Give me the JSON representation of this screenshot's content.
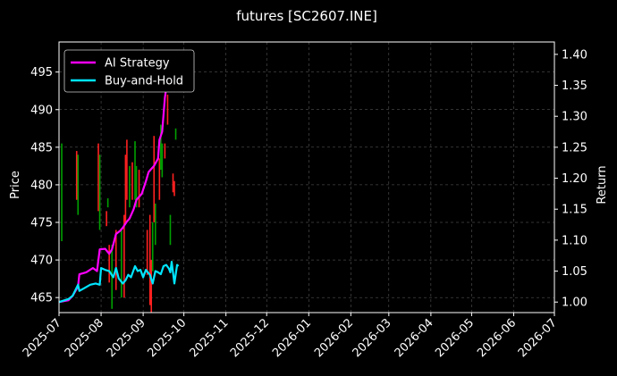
{
  "chart_data": {
    "type": "line",
    "title": "futures [SC2607.INE]",
    "xlabel": "",
    "ylabel_left": "Price",
    "ylabel_right": "Return",
    "x_ticks": [
      "2025-07",
      "2025-08",
      "2025-09",
      "2025-10",
      "2025-11",
      "2025-12",
      "2026-01",
      "2026-02",
      "2026-03",
      "2026-04",
      "2026-05",
      "2026-06",
      "2026-07"
    ],
    "xlim": [
      "2025-07-01",
      "2026-07-01"
    ],
    "y_left_ticks": [
      465,
      470,
      475,
      480,
      485,
      490,
      495
    ],
    "y_left_lim": [
      463,
      499
    ],
    "y_right_ticks": [
      1.0,
      1.05,
      1.1,
      1.15,
      1.2,
      1.25,
      1.3,
      1.35,
      1.4
    ],
    "y_right_lim": [
      0.983,
      1.42
    ],
    "grid": true,
    "legend_position": "top-left",
    "background": "#000000",
    "colors": {
      "up": "#00a000",
      "down": "#ff2020",
      "ai": "#ff00ff",
      "bh": "#00e5ff"
    },
    "series": [
      {
        "name": "AI Strategy",
        "axis": "right",
        "points": [
          [
            "2025-07-01",
            1.0
          ],
          [
            "2025-07-08",
            1.003
          ],
          [
            "2025-07-11",
            1.01
          ],
          [
            "2025-07-15",
            1.025
          ],
          [
            "2025-07-16",
            1.045
          ],
          [
            "2025-07-21",
            1.048
          ],
          [
            "2025-07-26",
            1.055
          ],
          [
            "2025-07-29",
            1.05
          ],
          [
            "2025-07-31",
            1.085
          ],
          [
            "2025-08-04",
            1.086
          ],
          [
            "2025-08-07",
            1.078
          ],
          [
            "2025-08-09",
            1.085
          ],
          [
            "2025-08-12",
            1.11
          ],
          [
            "2025-08-15",
            1.115
          ],
          [
            "2025-08-17",
            1.12
          ],
          [
            "2025-08-20",
            1.13
          ],
          [
            "2025-08-22",
            1.135
          ],
          [
            "2025-08-25",
            1.15
          ],
          [
            "2025-08-27",
            1.165
          ],
          [
            "2025-08-29",
            1.17
          ],
          [
            "2025-08-31",
            1.175
          ],
          [
            "2025-09-03",
            1.195
          ],
          [
            "2025-09-05",
            1.21
          ],
          [
            "2025-09-07",
            1.215
          ],
          [
            "2025-09-09",
            1.22
          ],
          [
            "2025-09-12",
            1.232
          ],
          [
            "2025-09-13",
            1.262
          ],
          [
            "2025-09-15",
            1.275
          ],
          [
            "2025-09-17",
            1.33
          ],
          [
            "2025-09-18",
            1.345
          ],
          [
            "2025-09-22",
            1.355
          ],
          [
            "2025-09-24",
            1.375
          ],
          [
            "2025-09-26",
            1.395
          ]
        ]
      },
      {
        "name": "Buy-and-Hold",
        "axis": "right",
        "points": [
          [
            "2025-07-01",
            1.0
          ],
          [
            "2025-07-08",
            1.005
          ],
          [
            "2025-07-11",
            1.01
          ],
          [
            "2025-07-15",
            1.028
          ],
          [
            "2025-07-16",
            1.018
          ],
          [
            "2025-07-20",
            1.023
          ],
          [
            "2025-07-24",
            1.028
          ],
          [
            "2025-07-28",
            1.03
          ],
          [
            "2025-07-31",
            1.028
          ],
          [
            "2025-08-01",
            1.055
          ],
          [
            "2025-08-04",
            1.052
          ],
          [
            "2025-08-07",
            1.05
          ],
          [
            "2025-08-10",
            1.04
          ],
          [
            "2025-08-12",
            1.055
          ],
          [
            "2025-08-14",
            1.038
          ],
          [
            "2025-08-17",
            1.03
          ],
          [
            "2025-08-19",
            1.035
          ],
          [
            "2025-08-21",
            1.044
          ],
          [
            "2025-08-23",
            1.04
          ],
          [
            "2025-08-26",
            1.058
          ],
          [
            "2025-08-28",
            1.05
          ],
          [
            "2025-08-30",
            1.052
          ],
          [
            "2025-09-01",
            1.04
          ],
          [
            "2025-09-03",
            1.052
          ],
          [
            "2025-09-06",
            1.044
          ],
          [
            "2025-09-08",
            1.03
          ],
          [
            "2025-09-10",
            1.05
          ],
          [
            "2025-09-12",
            1.048
          ],
          [
            "2025-09-14",
            1.045
          ],
          [
            "2025-09-16",
            1.058
          ],
          [
            "2025-09-18",
            1.06
          ],
          [
            "2025-09-20",
            1.054
          ],
          [
            "2025-09-21",
            1.048
          ],
          [
            "2025-09-22",
            1.065
          ],
          [
            "2025-09-24",
            1.03
          ],
          [
            "2025-09-26",
            1.06
          ],
          [
            "2025-09-27",
            1.058
          ]
        ]
      }
    ],
    "candles": [
      {
        "date": "2025-07-03",
        "low": 472.5,
        "high": 485.5,
        "dir": "up"
      },
      {
        "date": "2025-07-14",
        "low": 478.0,
        "high": 484.5,
        "dir": "down"
      },
      {
        "date": "2025-07-15",
        "low": 476.0,
        "high": 484.0,
        "dir": "up"
      },
      {
        "date": "2025-07-30",
        "low": 476.5,
        "high": 485.5,
        "dir": "down"
      },
      {
        "date": "2025-07-31",
        "low": 474.0,
        "high": 484.0,
        "dir": "up"
      },
      {
        "date": "2025-08-05",
        "low": 474.5,
        "high": 476.5,
        "dir": "down"
      },
      {
        "date": "2025-08-06",
        "low": 477.0,
        "high": 478.2,
        "dir": "up"
      },
      {
        "date": "2025-08-07",
        "low": 467.0,
        "high": 472.0,
        "dir": "down"
      },
      {
        "date": "2025-08-09",
        "low": 463.5,
        "high": 472.0,
        "dir": "up"
      },
      {
        "date": "2025-08-12",
        "low": 466.0,
        "high": 474.0,
        "dir": "down"
      },
      {
        "date": "2025-08-16",
        "low": 465.0,
        "high": 474.0,
        "dir": "up"
      },
      {
        "date": "2025-08-18",
        "low": 465.0,
        "high": 476.0,
        "dir": "down"
      },
      {
        "date": "2025-08-19",
        "low": 475.0,
        "high": 484.0,
        "dir": "down"
      },
      {
        "date": "2025-08-20",
        "low": 478.0,
        "high": 486.0,
        "dir": "down"
      },
      {
        "date": "2025-08-22",
        "low": 477.0,
        "high": 482.5,
        "dir": "up"
      },
      {
        "date": "2025-08-24",
        "low": 478.0,
        "high": 483.0,
        "dir": "down"
      },
      {
        "date": "2025-08-26",
        "low": 478.0,
        "high": 485.8,
        "dir": "up"
      },
      {
        "date": "2025-08-27",
        "low": 477.0,
        "high": 482.5,
        "dir": "up"
      },
      {
        "date": "2025-08-29",
        "low": 477.0,
        "high": 482.0,
        "dir": "down"
      },
      {
        "date": "2025-09-04",
        "low": 468.0,
        "high": 474.0,
        "dir": "down"
      },
      {
        "date": "2025-09-06",
        "low": 464.0,
        "high": 476.0,
        "dir": "down"
      },
      {
        "date": "2025-09-07",
        "low": 463.0,
        "high": 470.0,
        "dir": "down"
      },
      {
        "date": "2025-09-08",
        "low": 468.5,
        "high": 475.0,
        "dir": "up"
      },
      {
        "date": "2025-09-09",
        "low": 475.0,
        "high": 486.5,
        "dir": "down"
      },
      {
        "date": "2025-09-10",
        "low": 472.0,
        "high": 477.5,
        "dir": "up"
      },
      {
        "date": "2025-09-13",
        "low": 478.0,
        "high": 483.5,
        "dir": "down"
      },
      {
        "date": "2025-09-14",
        "low": 482.0,
        "high": 488.0,
        "dir": "up"
      },
      {
        "date": "2025-09-15",
        "low": 481.0,
        "high": 485.5,
        "dir": "up"
      },
      {
        "date": "2025-09-17",
        "low": 483.5,
        "high": 485.5,
        "dir": "down"
      },
      {
        "date": "2025-09-19",
        "low": 488.0,
        "high": 492.0,
        "dir": "down"
      },
      {
        "date": "2025-09-21",
        "low": 472.0,
        "high": 476.0,
        "dir": "up"
      },
      {
        "date": "2025-09-23",
        "low": 479.0,
        "high": 481.5,
        "dir": "down"
      },
      {
        "date": "2025-09-24",
        "low": 478.5,
        "high": 480.5,
        "dir": "down"
      },
      {
        "date": "2025-09-25",
        "low": 486.0,
        "high": 487.5,
        "dir": "up"
      }
    ]
  }
}
